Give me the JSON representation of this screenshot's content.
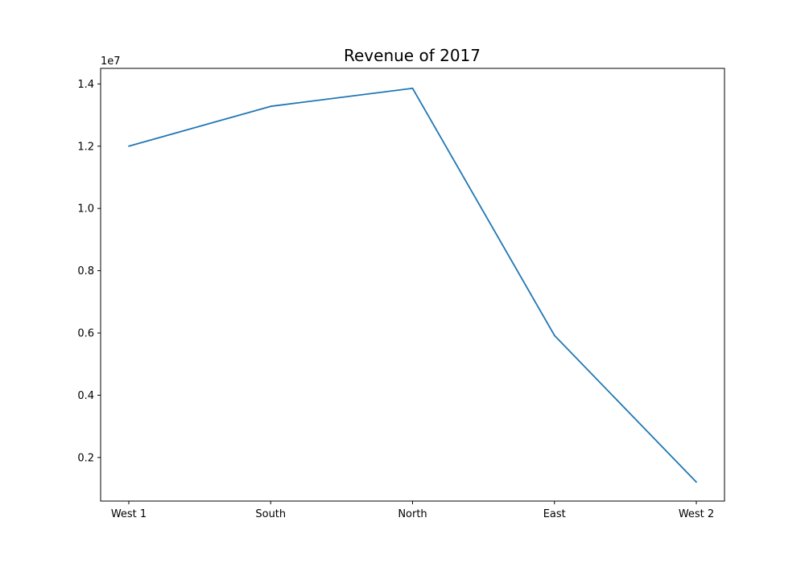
{
  "chart_data": {
    "type": "line",
    "title": "Revenue of 2017",
    "xlabel": "",
    "ylabel": "",
    "y_offset_label": "1e7",
    "categories": [
      "West 1",
      "South",
      "North",
      "East",
      "West 2"
    ],
    "series": [
      {
        "values": [
          12000000,
          13280000,
          13860000,
          5920000,
          1210000
        ]
      }
    ],
    "ylim": [
      600000,
      14500000
    ],
    "y_ticks": [
      2000000,
      4000000,
      6000000,
      8000000,
      10000000,
      12000000,
      14000000
    ],
    "y_tick_labels": [
      "0.2",
      "0.4",
      "0.6",
      "0.8",
      "1.0",
      "1.2",
      "1.4"
    ],
    "grid": false,
    "line_color": "#1f77b4"
  }
}
